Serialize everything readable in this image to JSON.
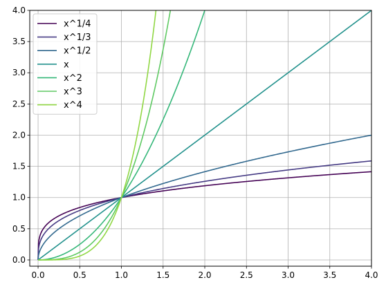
{
  "chart_data": {
    "type": "line",
    "title": "",
    "xlabel": "",
    "ylabel": "",
    "xlim": [
      -0.1,
      4.0
    ],
    "ylim": [
      -0.1,
      4.0
    ],
    "grid": true,
    "legend_position": "top-left",
    "x_ticks": [
      {
        "value": 0.0,
        "label": "0.0"
      },
      {
        "value": 0.5,
        "label": "0.5"
      },
      {
        "value": 1.0,
        "label": "1.0"
      },
      {
        "value": 1.5,
        "label": "1.5"
      },
      {
        "value": 2.0,
        "label": "2.0"
      },
      {
        "value": 2.5,
        "label": "2.5"
      },
      {
        "value": 3.0,
        "label": "3.0"
      },
      {
        "value": 3.5,
        "label": "3.5"
      },
      {
        "value": 4.0,
        "label": "4.0"
      }
    ],
    "y_ticks": [
      {
        "value": 0.0,
        "label": "0.0"
      },
      {
        "value": 0.5,
        "label": "0.5"
      },
      {
        "value": 1.0,
        "label": "1.0"
      },
      {
        "value": 1.5,
        "label": "1.5"
      },
      {
        "value": 2.0,
        "label": "2.0"
      },
      {
        "value": 2.5,
        "label": "2.5"
      },
      {
        "value": 3.0,
        "label": "3.0"
      },
      {
        "value": 3.5,
        "label": "3.5"
      },
      {
        "value": 4.0,
        "label": "4.0"
      }
    ],
    "series": [
      {
        "name": "x^1/4",
        "exponent": 0.25,
        "color": "#440154"
      },
      {
        "name": "x^1/3",
        "exponent": 0.3333333,
        "color": "#443983"
      },
      {
        "name": "x^1/2",
        "exponent": 0.5,
        "color": "#31688e"
      },
      {
        "name": "x",
        "exponent": 1,
        "color": "#21918c"
      },
      {
        "name": "x^2",
        "exponent": 2,
        "color": "#35b779"
      },
      {
        "name": "x^3",
        "exponent": 3,
        "color": "#5ec962"
      },
      {
        "name": "x^4",
        "exponent": 4,
        "color": "#90d743"
      }
    ]
  }
}
